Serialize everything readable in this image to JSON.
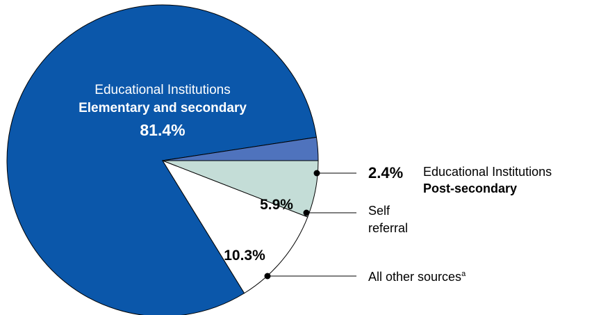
{
  "chart_data": {
    "type": "pie",
    "title": "",
    "slices": [
      {
        "key": "elementary",
        "value": 81.4,
        "value_label": "81.4%",
        "label_line1": "Educational Institutions",
        "label_line2": "Elementary and secondary",
        "color": "#0b57aa"
      },
      {
        "key": "post_secondary",
        "value": 2.4,
        "value_label": "2.4%",
        "label_line1": "Educational Institutions",
        "label_line2": "Post-secondary",
        "color": "#4f73bd"
      },
      {
        "key": "self_referral",
        "value": 5.9,
        "value_label": "5.9%",
        "label_line1": "Self",
        "label_line2": "referral",
        "color": "#c4ddd7"
      },
      {
        "key": "other",
        "value": 10.3,
        "value_label": "10.3%",
        "label_line1": "All other sources",
        "label_sup": "a",
        "color": "#ffffff"
      }
    ]
  }
}
